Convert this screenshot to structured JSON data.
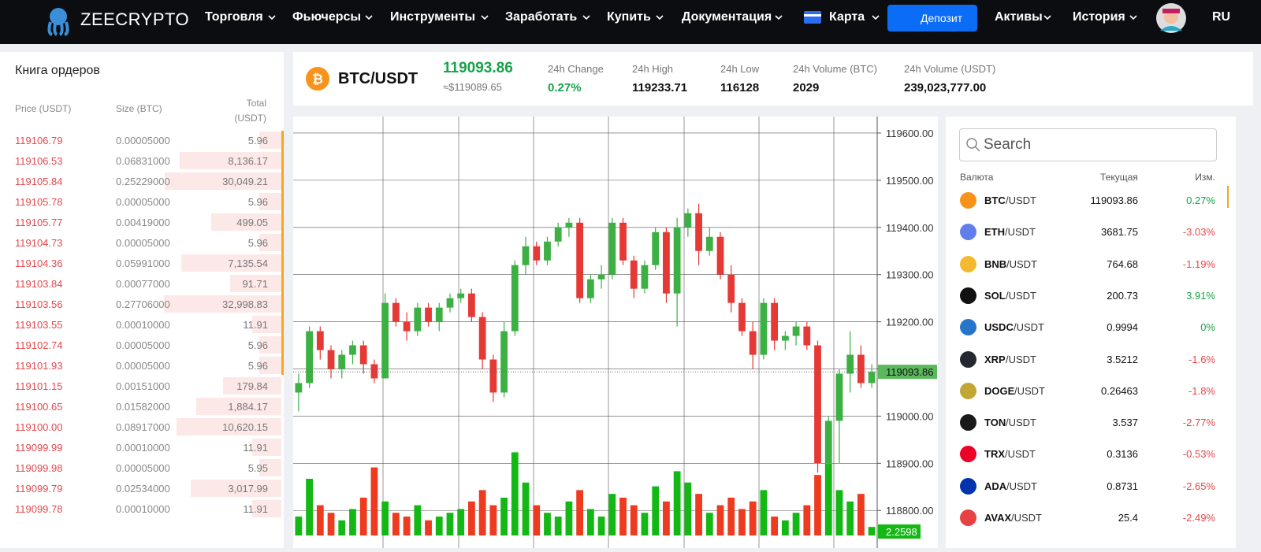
{
  "nav": {
    "logo": "ZEECRYPTO",
    "items": [
      "Торговля",
      "Фьючерсы",
      "Инструменты",
      "Заработать",
      "Купить",
      "Документация",
      "Карта"
    ],
    "deposit": "Депозит",
    "right_items": [
      "Активы",
      "История"
    ],
    "lang": "RU"
  },
  "orderbook": {
    "title": "Книга ордеров",
    "headers": [
      "Price (USDT)",
      "Size (BTC)",
      "Total\n(USDT)"
    ],
    "rows": [
      [
        "119106.79",
        "0.00005000",
        "5.96"
      ],
      [
        "119106.53",
        "0.06831000",
        "8,136.17"
      ],
      [
        "119105.84",
        "0.25229000",
        "30,049.21"
      ],
      [
        "119105.78",
        "0.00005000",
        "5.96"
      ],
      [
        "119105.77",
        "0.00419000",
        "499.05"
      ],
      [
        "119104.73",
        "0.00005000",
        "5.96"
      ],
      [
        "119104.36",
        "0.05991000",
        "7,135.54"
      ],
      [
        "119103.84",
        "0.00077000",
        "91.71"
      ],
      [
        "119103.56",
        "0.27706000",
        "32,998.83"
      ],
      [
        "119103.55",
        "0.00010000",
        "11.91"
      ],
      [
        "119102.74",
        "0.00005000",
        "5.96"
      ],
      [
        "119101.93",
        "0.00005000",
        "5.96"
      ],
      [
        "119101.15",
        "0.00151000",
        "179.84"
      ],
      [
        "119100.65",
        "0.01582000",
        "1,884.17"
      ],
      [
        "119100.00",
        "0.08917000",
        "10,620.15"
      ],
      [
        "119099.99",
        "0.00010000",
        "11.91"
      ],
      [
        "119099.98",
        "0.00005000",
        "5.95"
      ],
      [
        "119099.79",
        "0.02534000",
        "3,017.99"
      ],
      [
        "119099.78",
        "0.00010000",
        "11.91"
      ]
    ]
  },
  "ticker": {
    "pair": "BTC/USDT",
    "price": "119093.86",
    "usd": "≈$119089.65",
    "stats": [
      [
        "24h Change",
        "0.27%"
      ],
      [
        "24h High",
        "119233.71"
      ],
      [
        "24h Low",
        "116128"
      ],
      [
        "24h Volume (BTC)",
        "2029"
      ],
      [
        "24h Volume (USDT)",
        "239,023,777.00"
      ]
    ]
  },
  "chart_data": {
    "type": "candlestick",
    "ylim": [
      118747,
      119635
    ],
    "yticks": [
      {
        "value": 118800,
        "label": "118800.00"
      },
      {
        "value": 118900,
        "label": "118900.00"
      },
      {
        "value": 119000,
        "label": "119000.00"
      },
      {
        "value": 119100,
        "label": "119100.00"
      },
      {
        "value": 119200,
        "label": "119200.00"
      },
      {
        "value": 119300,
        "label": "119300.00"
      },
      {
        "value": 119400,
        "label": "119400.00"
      },
      {
        "value": 119500,
        "label": "119500.00"
      },
      {
        "value": 119600,
        "label": "119600.00"
      }
    ],
    "up_color": "#3cb043",
    "down_color": "#e53935",
    "volume_up_color": "#14b814",
    "volume_down_color": "#ee3a1f",
    "vlim": [
      0,
      25
    ],
    "last_price": 119093.86,
    "last_volume": 2.2598,
    "candles": [
      [
        119050,
        119090,
        119010,
        119070
      ],
      [
        119070,
        119190,
        119060,
        119180
      ],
      [
        119180,
        119190,
        119120,
        119140
      ],
      [
        119140,
        119150,
        119080,
        119100
      ],
      [
        119100,
        119140,
        119080,
        119130
      ],
      [
        119130,
        119160,
        119110,
        119150
      ],
      [
        119150,
        119160,
        119090,
        119110
      ],
      [
        119110,
        119120,
        119070,
        119080
      ],
      [
        119080,
        119260,
        119080,
        119240
      ],
      [
        119240,
        119250,
        119190,
        119200
      ],
      [
        119200,
        119220,
        119160,
        119180
      ],
      [
        119180,
        119240,
        119170,
        119230
      ],
      [
        119230,
        119240,
        119190,
        119200
      ],
      [
        119200,
        119240,
        119180,
        119230
      ],
      [
        119230,
        119260,
        119220,
        119250
      ],
      [
        119250,
        119270,
        119240,
        119260
      ],
      [
        119260,
        119270,
        119200,
        119210
      ],
      [
        119210,
        119220,
        119100,
        119120
      ],
      [
        119120,
        119130,
        119030,
        119050
      ],
      [
        119050,
        119200,
        119040,
        119180
      ],
      [
        119180,
        119330,
        119170,
        119320
      ],
      [
        119320,
        119380,
        119300,
        119360
      ],
      [
        119360,
        119370,
        119320,
        119330
      ],
      [
        119330,
        119380,
        119320,
        119370
      ],
      [
        119370,
        119410,
        119360,
        119400
      ],
      [
        119400,
        119420,
        119380,
        119410
      ],
      [
        119410,
        119420,
        119240,
        119250
      ],
      [
        119250,
        119300,
        119240,
        119290
      ],
      [
        119290,
        119320,
        119270,
        119300
      ],
      [
        119300,
        119420,
        119290,
        119410
      ],
      [
        119410,
        119420,
        119320,
        119330
      ],
      [
        119330,
        119340,
        119250,
        119270
      ],
      [
        119270,
        119330,
        119260,
        119320
      ],
      [
        119320,
        119400,
        119310,
        119390
      ],
      [
        119390,
        119400,
        119240,
        119260
      ],
      [
        119260,
        119420,
        119190,
        119400
      ],
      [
        119400,
        119440,
        119380,
        119430
      ],
      [
        119430,
        119450,
        119320,
        119350
      ],
      [
        119350,
        119400,
        119340,
        119380
      ],
      [
        119380,
        119390,
        119290,
        119300
      ],
      [
        119300,
        119320,
        119220,
        119240
      ],
      [
        119240,
        119250,
        119170,
        119180
      ],
      [
        119180,
        119200,
        119100,
        119130
      ],
      [
        119130,
        119250,
        119120,
        119240
      ],
      [
        119240,
        119250,
        119140,
        119160
      ],
      [
        119160,
        119180,
        119140,
        119170
      ],
      [
        119170,
        119200,
        119150,
        119190
      ],
      [
        119190,
        119200,
        119140,
        119150
      ],
      [
        119150,
        119160,
        118880,
        118900
      ],
      [
        118900,
        119000,
        118890,
        118990
      ],
      [
        118990,
        119100,
        118900,
        119090
      ],
      [
        119090,
        119180,
        119050,
        119130
      ],
      [
        119130,
        119150,
        119060,
        119070
      ],
      [
        119070,
        119110,
        119060,
        119093.86
      ]
    ],
    "volumes": [
      5,
      15,
      8,
      6,
      4,
      7,
      10,
      18,
      9,
      6,
      5,
      8,
      4,
      5,
      6,
      7,
      9,
      12,
      8,
      10,
      22,
      14,
      8,
      6,
      5,
      9,
      12,
      7,
      5,
      11,
      10,
      8,
      6,
      13,
      9,
      17,
      14,
      11,
      6,
      8,
      10,
      7,
      9,
      12,
      5,
      4,
      6,
      8,
      16,
      19,
      12,
      9,
      11,
      2.2598
    ]
  },
  "market": {
    "search": "Search",
    "headers": [
      "Валюта",
      "Текущая",
      "Изм."
    ],
    "rows": [
      [
        "BTC",
        "/USDT",
        "119093.86",
        "0.27%",
        "#f7931a"
      ],
      [
        "ETH",
        "/USDT",
        "3681.75",
        "-3.03%",
        "#627eea"
      ],
      [
        "BNB",
        "/USDT",
        "764.68",
        "-1.19%",
        "#f3ba2f"
      ],
      [
        "SOL",
        "/USDT",
        "200.73",
        "3.91%",
        "#111111"
      ],
      [
        "USDC",
        "/USDT",
        "0.9994",
        "0%",
        "#2775ca"
      ],
      [
        "XRP",
        "/USDT",
        "3.5212",
        "-1.6%",
        "#23292f"
      ],
      [
        "DOGE",
        "/USDT",
        "0.26463",
        "-1.8%",
        "#c2a633"
      ],
      [
        "TON",
        "/USDT",
        "3.537",
        "-2.77%",
        "#1a1a1a"
      ],
      [
        "TRX",
        "/USDT",
        "0.3136",
        "-0.53%",
        "#ef0027"
      ],
      [
        "ADA",
        "/USDT",
        "0.8731",
        "-2.65%",
        "#0033ad"
      ],
      [
        "AVAX",
        "/USDT",
        "25.4",
        "-2.49%",
        "#e84142"
      ]
    ]
  }
}
